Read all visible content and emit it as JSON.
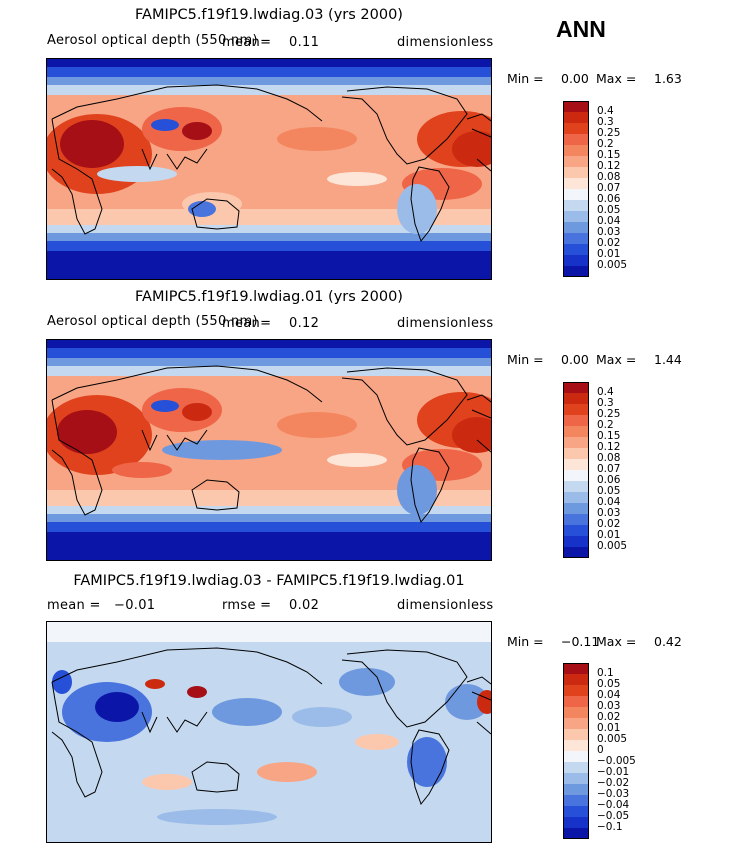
{
  "season": "ANN",
  "panels": [
    {
      "title": "FAMIPC5.f19f19.lwdiag.03 (yrs 2000)",
      "left_label": "Aerosol optical depth (550 nm)",
      "mean_text": "mean=",
      "mean_value": "0.11",
      "rmse_text": "",
      "rmse_value": "",
      "units": "dimensionless",
      "min_label": "Min =",
      "min_value": "0.00",
      "max_label": "Max =",
      "max_value": "1.63",
      "kind": "aod"
    },
    {
      "title": "FAMIPC5.f19f19.lwdiag.01 (yrs 2000)",
      "left_label": "Aerosol optical depth (550 nm)",
      "mean_text": "mean=",
      "mean_value": "0.12",
      "rmse_text": "",
      "rmse_value": "",
      "units": "dimensionless",
      "min_label": "Min =",
      "min_value": "0.00",
      "max_label": "Max =",
      "max_value": "1.44",
      "kind": "aod"
    },
    {
      "title": "FAMIPC5.f19f19.lwdiag.03 - FAMIPC5.f19f19.lwdiag.01",
      "left_label": "mean =",
      "mean_text": "",
      "mean_value": "−0.01",
      "rmse_text": "rmse =",
      "rmse_value": "0.02",
      "units": "dimensionless",
      "min_label": "Min =",
      "min_value": "−0.11",
      "max_label": "Max =",
      "max_value": "0.42",
      "kind": "diff"
    }
  ],
  "colorbars": {
    "aod": {
      "labels": [
        "0.4",
        "0.3",
        "0.25",
        "0.2",
        "0.15",
        "0.12",
        "0.08",
        "0.07",
        "0.06",
        "0.05",
        "0.04",
        "0.03",
        "0.02",
        "0.01",
        "0.005"
      ],
      "colors": [
        "#a50f15",
        "#cb2a11",
        "#e0421d",
        "#ef6548",
        "#f4865f",
        "#f7a585",
        "#fbc7ad",
        "#fde6d8",
        "#f2f6fb",
        "#c4d9f0",
        "#9bbce8",
        "#6f99df",
        "#4a74dd",
        "#2650d8",
        "#1632c8",
        "#0b16a8"
      ]
    },
    "diff": {
      "labels": [
        "0.1",
        "0.05",
        "0.04",
        "0.03",
        "0.02",
        "0.01",
        "0.005",
        "0",
        "−0.005",
        "−0.01",
        "−0.02",
        "−0.03",
        "−0.04",
        "−0.05",
        "−0.1"
      ],
      "colors": [
        "#a50f15",
        "#cb2a11",
        "#e0421d",
        "#ef6548",
        "#f4865f",
        "#f7a585",
        "#fbc7ad",
        "#fde6d8",
        "#f2f6fb",
        "#c4d9f0",
        "#9bbce8",
        "#6f99df",
        "#4a74dd",
        "#2650d8",
        "#1632c8",
        "#0b16a8"
      ]
    }
  },
  "chart_data": [
    {
      "type": "heatmap",
      "title": "FAMIPC5.f19f19.lwdiag.03 (yrs 2000)",
      "variable": "Aerosol optical depth (550 nm)",
      "units": "dimensionless",
      "mean": 0.11,
      "min": 0.0,
      "max": 1.63,
      "xlim": [
        0,
        360
      ],
      "ylim": [
        -90,
        90
      ],
      "levels": [
        0.005,
        0.01,
        0.02,
        0.03,
        0.04,
        0.05,
        0.06,
        0.07,
        0.08,
        0.12,
        0.15,
        0.2,
        0.25,
        0.3,
        0.4
      ]
    },
    {
      "type": "heatmap",
      "title": "FAMIPC5.f19f19.lwdiag.01 (yrs 2000)",
      "variable": "Aerosol optical depth (550 nm)",
      "units": "dimensionless",
      "mean": 0.12,
      "min": 0.0,
      "max": 1.44,
      "xlim": [
        0,
        360
      ],
      "ylim": [
        -90,
        90
      ],
      "levels": [
        0.005,
        0.01,
        0.02,
        0.03,
        0.04,
        0.05,
        0.06,
        0.07,
        0.08,
        0.12,
        0.15,
        0.2,
        0.25,
        0.3,
        0.4
      ]
    },
    {
      "type": "heatmap",
      "title": "FAMIPC5.f19f19.lwdiag.03 - FAMIPC5.f19f19.lwdiag.01",
      "units": "dimensionless",
      "mean": -0.01,
      "rmse": 0.02,
      "min": -0.11,
      "max": 0.42,
      "xlim": [
        0,
        360
      ],
      "ylim": [
        -90,
        90
      ],
      "levels": [
        -0.1,
        -0.05,
        -0.04,
        -0.03,
        -0.02,
        -0.01,
        -0.005,
        0,
        0.005,
        0.01,
        0.02,
        0.03,
        0.04,
        0.05,
        0.1
      ]
    }
  ]
}
